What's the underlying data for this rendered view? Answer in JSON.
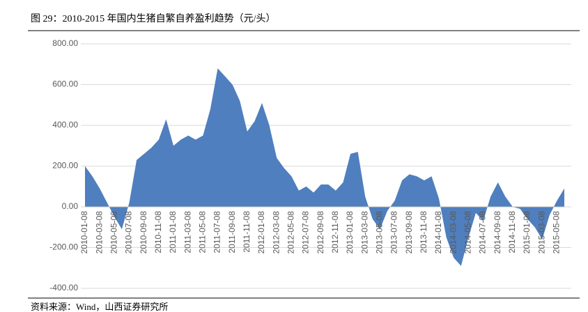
{
  "chart_data": {
    "type": "area",
    "title": "图 29：2010-2015 年国内生猪自繁自养盈利趋势（元/头）",
    "source": "资料来源：Wind，山西证券研究所",
    "color": "#4f7fbe",
    "grid": true,
    "categories": [
      "2010-01-08",
      null,
      "2010-03-08",
      null,
      "2010-05-08",
      null,
      "2010-07-08",
      null,
      "2010-09-08",
      null,
      "2010-11-08",
      null,
      "2011-01-08",
      null,
      "2011-03-08",
      null,
      "2011-05-08",
      null,
      "2011-07-08",
      null,
      "2011-09-08",
      null,
      "2011-11-08",
      null,
      "2012-01-08",
      null,
      "2012-03-08",
      null,
      "2012-05-08",
      null,
      "2012-07-08",
      null,
      "2012-09-08",
      null,
      "2012-11-08",
      null,
      "2013-01-08",
      null,
      "2013-03-08",
      null,
      "2013-05-08",
      null,
      "2013-07-08",
      null,
      "2013-09-08",
      null,
      "2013-11-08",
      null,
      "2014-01-08",
      null,
      "2014-03-08",
      null,
      "2014-05-08",
      null,
      "2014-07-08",
      null,
      "2014-09-08",
      null,
      "2014-11-08",
      null,
      "2015-01-08",
      null,
      "2015-03-08",
      null,
      "2015-05-08",
      null
    ],
    "values": [
      200,
      150,
      90,
      20,
      -50,
      -110,
      20,
      230,
      260,
      290,
      330,
      430,
      300,
      330,
      350,
      330,
      350,
      480,
      680,
      640,
      600,
      520,
      370,
      420,
      510,
      400,
      240,
      190,
      150,
      80,
      100,
      70,
      110,
      110,
      80,
      120,
      260,
      270,
      50,
      -60,
      -110,
      -20,
      30,
      130,
      160,
      150,
      130,
      150,
      40,
      -150,
      -250,
      -290,
      -150,
      -30,
      -70,
      50,
      120,
      50,
      0,
      -10,
      -60,
      -100,
      -160,
      -40,
      30,
      90
    ],
    "ylim": [
      -400,
      800
    ],
    "yticks": [
      {
        "value": -400,
        "label": "-400.00"
      },
      {
        "value": -200,
        "label": "-200.00"
      },
      {
        "value": 0,
        "label": "0.00"
      },
      {
        "value": 200,
        "label": "200.00"
      },
      {
        "value": 400,
        "label": "400.00"
      },
      {
        "value": 600,
        "label": "600.00"
      },
      {
        "value": 800,
        "label": "800.00"
      }
    ]
  }
}
